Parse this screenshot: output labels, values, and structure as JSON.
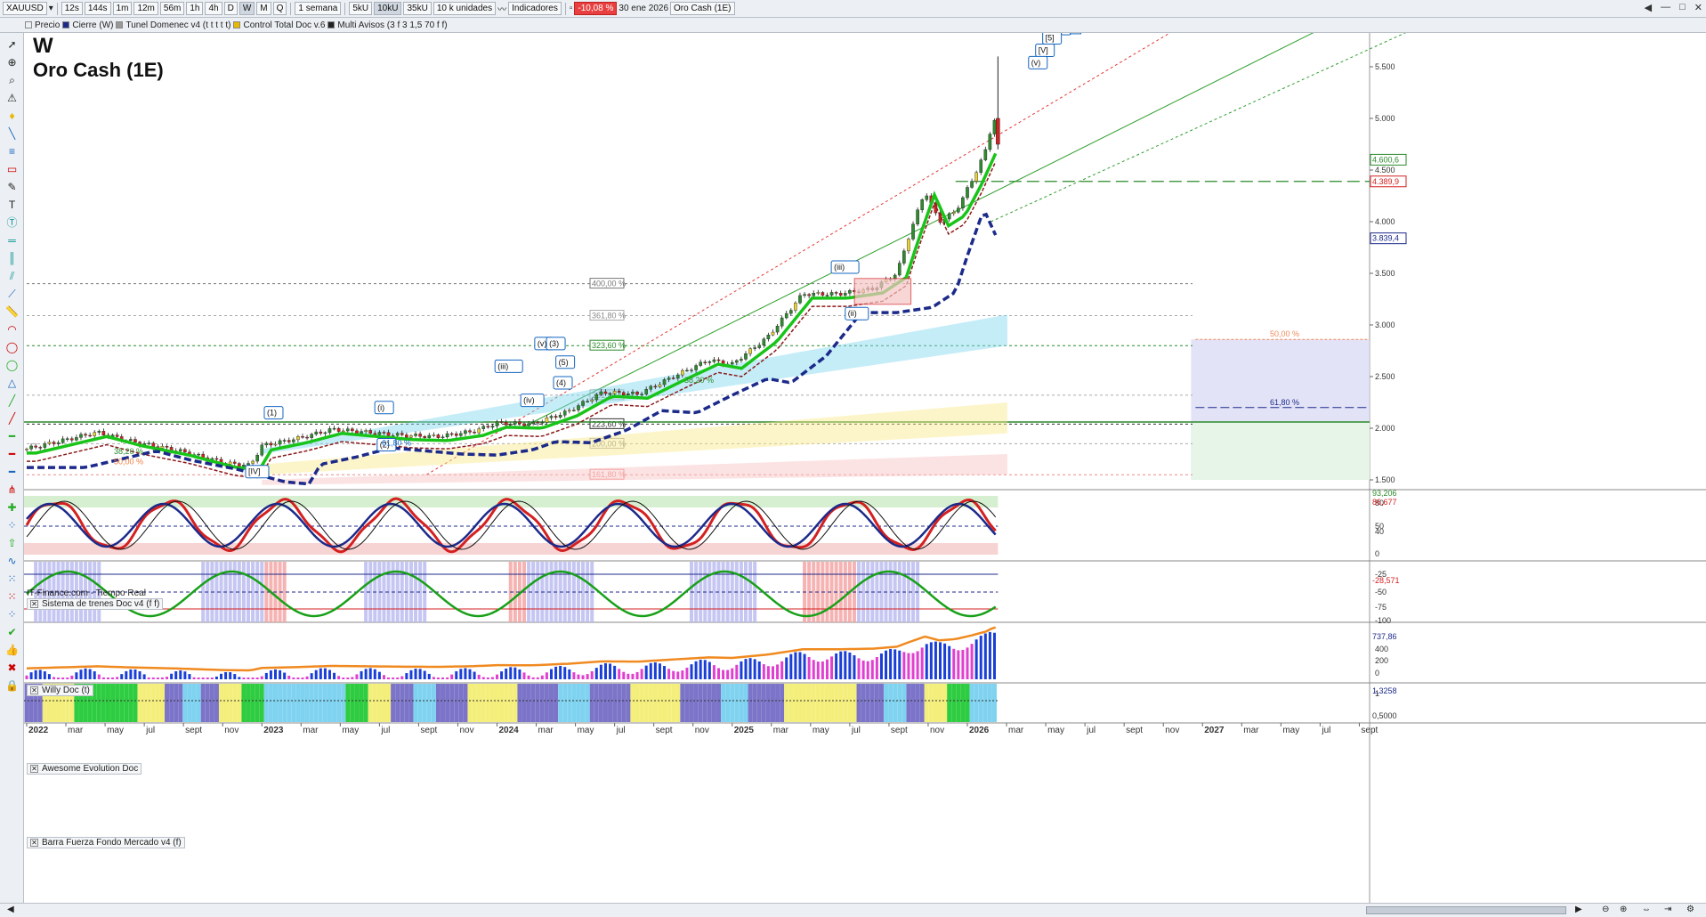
{
  "toolbar": {
    "symbol": "XAUUSD",
    "timeframes": [
      "12s",
      "144s",
      "1m",
      "12m",
      "56m",
      "1h",
      "4h",
      "D",
      "W",
      "M",
      "Q"
    ],
    "period": "1 semana",
    "units": [
      "5kU",
      "10kU",
      "35kU"
    ],
    "units_dropdown": "10 k unidades",
    "indicators_label": "Indicadores",
    "change_pct": "-10,08 %",
    "date": "30 ene 2026",
    "chart_label": "Oro Cash (1E)"
  },
  "subbar": {
    "items": [
      "Precio",
      "Cierre (W)",
      "Tunel Domenec v4 (t t t t t)",
      "Control Total Doc v.6",
      "Multi Avisos (3 f 3 1,5 70 f f)"
    ]
  },
  "chart": {
    "title": "W",
    "subtitle": "Oro Cash (1E)",
    "source": "IT-Finance.com - Tiempo Real",
    "price_ticks": [
      "5.500",
      "5.000",
      "4.500",
      "4.000",
      "3.500",
      "3.000",
      "2.500",
      "2.000",
      "1.500"
    ],
    "price_tags": [
      "4.600,6",
      "4.389,9",
      "3.839,4"
    ],
    "fib_labels": [
      "400,00 %",
      "361,80 %",
      "323,60 %",
      "261,80 %",
      "223,60 %",
      "200,00 %",
      "161,80 %"
    ],
    "fib_small": [
      "38,20 %",
      "50,00 %",
      "61,80 %",
      "38,20 %"
    ],
    "right_fib": [
      "50,00 %",
      "61,80 %"
    ],
    "wave_labels": [
      "(1)",
      "(2)",
      "(i)",
      "(ii)",
      "(iii)",
      "(iv)",
      "(v)",
      "(3)",
      "(4)",
      "(5)",
      "[IV]",
      "[V]",
      "[5]",
      "1",
      "iii",
      "(v)",
      "(iii)",
      "(ii)",
      "(iv)",
      "(i)",
      "ii"
    ],
    "x_labels": [
      "2022",
      "mar",
      "may",
      "jul",
      "sept",
      "nov",
      "2023",
      "mar",
      "may",
      "jul",
      "sept",
      "nov",
      "2024",
      "mar",
      "may",
      "jul",
      "sept",
      "nov",
      "2025",
      "mar",
      "may",
      "jul",
      "sept",
      "nov",
      "2026",
      "mar",
      "may",
      "jul",
      "sept",
      "nov",
      "2027",
      "mar",
      "may",
      "jul",
      "sept"
    ]
  },
  "panels": {
    "trends": {
      "name": "Sistema de trenes Doc v4 (f f)",
      "ticks": [
        "80",
        "50",
        "40",
        "0"
      ],
      "tags": [
        "93,206",
        "86,677"
      ]
    },
    "willy": {
      "name": "Willy Doc (t)",
      "ticks": [
        "-25",
        "-50",
        "-75",
        "-100"
      ],
      "tags": [
        "-28,571"
      ]
    },
    "awesome": {
      "name": "Awesome Evolution Doc",
      "ticks": [
        "400",
        "200",
        "0"
      ],
      "tags": [
        "737,86",
        "737,86"
      ]
    },
    "barra": {
      "name": "Barra Fuerza Fondo Mercado v4 (f)",
      "ticks": [
        "1"
      ],
      "tags": [
        "1,3258",
        "0,5000"
      ]
    }
  },
  "colors": {
    "up": "#2e8b2e",
    "down": "#d42020",
    "trend_green": "#19c419",
    "trend_navy": "#1c2a8a",
    "accent": "#1565c0"
  }
}
